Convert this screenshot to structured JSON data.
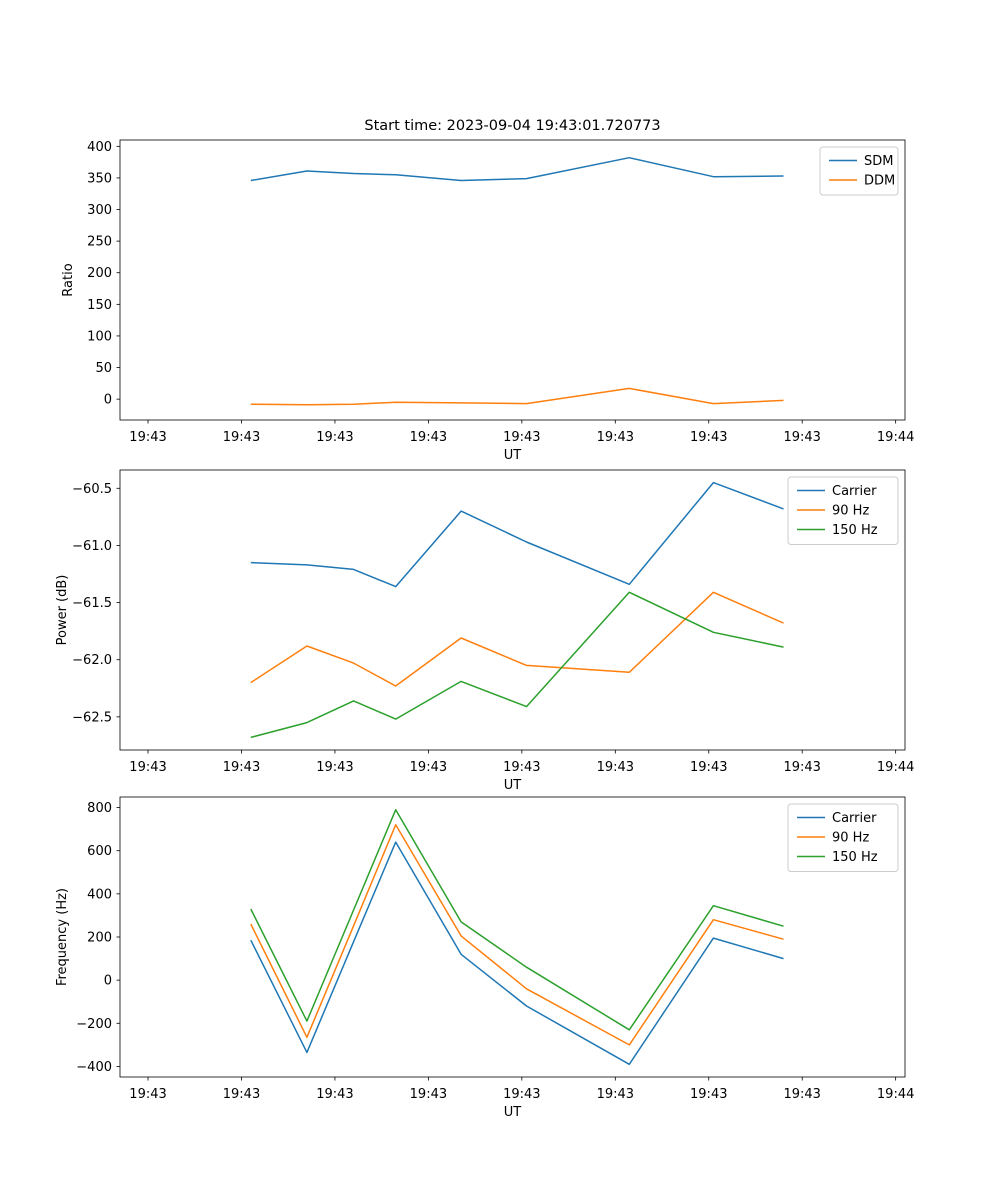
{
  "figure": {
    "background": "#ffffff",
    "title": "Start time: 2023-09-04 19:43:01.720773"
  },
  "chart_data": [
    {
      "type": "line",
      "title": "Start time: 2023-09-04 19:43:01.720773",
      "xlabel": "UT",
      "ylabel": "Ratio",
      "grid": false,
      "legend_position": "upper right",
      "xlim": [
        -0.3,
        8.1
      ],
      "ylim": [
        -33,
        410
      ],
      "xtick_labels": [
        "19:43",
        "19:43",
        "19:43",
        "19:43",
        "19:43",
        "19:43",
        "19:43",
        "19:43",
        "19:44"
      ],
      "ytick_values": [
        0,
        50,
        100,
        150,
        200,
        250,
        300,
        350,
        400
      ],
      "ytick_labels": [
        "0",
        "50",
        "100",
        "150",
        "200",
        "250",
        "300",
        "350",
        "400"
      ],
      "x": [
        1.1,
        1.7,
        2.2,
        2.65,
        3.35,
        4.05,
        5.15,
        6.05,
        6.8
      ],
      "series": [
        {
          "name": "SDM",
          "color": "#1f77b4",
          "values": [
            346,
            361,
            357,
            355,
            346,
            349,
            382,
            352,
            353
          ]
        },
        {
          "name": "DDM",
          "color": "#ff7f0e",
          "values": [
            -8,
            -9,
            -8,
            -5,
            -6,
            -7,
            17,
            -7,
            -2
          ]
        }
      ]
    },
    {
      "type": "line",
      "title": "",
      "xlabel": "UT",
      "ylabel": "Power (dB)",
      "grid": false,
      "legend_position": "upper right",
      "xlim": [
        -0.3,
        8.1
      ],
      "ylim": [
        -62.79,
        -60.34
      ],
      "xtick_labels": [
        "19:43",
        "19:43",
        "19:43",
        "19:43",
        "19:43",
        "19:43",
        "19:43",
        "19:43",
        "19:44"
      ],
      "ytick_values": [
        -62.5,
        -62.0,
        -61.5,
        -61.0,
        -60.5
      ],
      "ytick_labels": [
        "−62.5",
        "−62.0",
        "−61.5",
        "−61.0",
        "−60.5"
      ],
      "x": [
        1.1,
        1.7,
        2.2,
        2.65,
        3.35,
        4.05,
        5.15,
        6.05,
        6.8
      ],
      "series": [
        {
          "name": "Carrier",
          "color": "#1f77b4",
          "values": [
            -61.15,
            -61.17,
            -61.21,
            -61.36,
            -60.7,
            -60.97,
            -61.34,
            -60.45,
            -60.68
          ]
        },
        {
          "name": "90 Hz",
          "color": "#ff7f0e",
          "values": [
            -62.2,
            -61.88,
            -62.03,
            -62.23,
            -61.81,
            -62.05,
            -62.11,
            -61.41,
            -61.68
          ]
        },
        {
          "name": "150 Hz",
          "color": "#2ca02c",
          "values": [
            -62.68,
            -62.55,
            -62.36,
            -62.52,
            -62.19,
            -62.41,
            -61.41,
            -61.76,
            -61.89
          ]
        }
      ]
    },
    {
      "type": "line",
      "title": "",
      "xlabel": "UT",
      "ylabel": "Frequency (Hz)",
      "grid": false,
      "legend_position": "upper right",
      "xlim": [
        -0.3,
        8.1
      ],
      "ylim": [
        -449,
        849
      ],
      "xtick_labels": [
        "19:43",
        "19:43",
        "19:43",
        "19:43",
        "19:43",
        "19:43",
        "19:43",
        "19:43",
        "19:44"
      ],
      "ytick_values": [
        -400,
        -200,
        0,
        200,
        400,
        600,
        800
      ],
      "ytick_labels": [
        "−400",
        "−200",
        "0",
        "200",
        "400",
        "600",
        "800"
      ],
      "x": [
        1.1,
        1.7,
        2.2,
        2.65,
        3.35,
        4.05,
        5.15,
        6.05,
        6.8
      ],
      "series": [
        {
          "name": "Carrier",
          "color": "#1f77b4",
          "values": [
            185,
            -335,
            178,
            640,
            120,
            -120,
            -390,
            195,
            100
          ]
        },
        {
          "name": "90 Hz",
          "color": "#ff7f0e",
          "values": [
            260,
            -265,
            252,
            720,
            205,
            -40,
            -300,
            280,
            190
          ]
        },
        {
          "name": "150 Hz",
          "color": "#2ca02c",
          "values": [
            330,
            -190,
            325,
            790,
            270,
            60,
            -230,
            345,
            250
          ]
        }
      ]
    }
  ]
}
